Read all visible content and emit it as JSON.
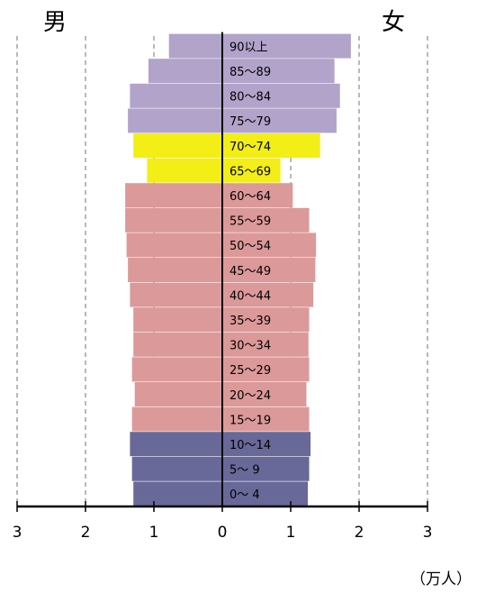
{
  "chart_data": {
    "type": "bar",
    "orientation": "horizontal-pyramid",
    "left_label": "男",
    "right_label": "女",
    "unit": "（万人）",
    "categories": [
      "0～ 4",
      "5～ 9",
      "10～14",
      "15～19",
      "20～24",
      "25～29",
      "30～34",
      "35～39",
      "40～44",
      "45～49",
      "50～54",
      "55～59",
      "60～64",
      "65～69",
      "70～74",
      "75～79",
      "80～84",
      "85～89",
      "90以上"
    ],
    "series": [
      {
        "name": "男",
        "values": [
          1.3,
          1.32,
          1.35,
          1.32,
          1.28,
          1.32,
          1.3,
          1.3,
          1.35,
          1.38,
          1.4,
          1.42,
          1.42,
          1.1,
          1.3,
          1.38,
          1.35,
          1.08,
          0.78
        ]
      },
      {
        "name": "女",
        "values": [
          1.25,
          1.27,
          1.29,
          1.27,
          1.23,
          1.27,
          1.26,
          1.27,
          1.33,
          1.36,
          1.37,
          1.27,
          1.03,
          0.85,
          1.43,
          1.67,
          1.72,
          1.64,
          1.88
        ]
      }
    ],
    "group_colors": [
      {
        "ages": "0～14",
        "color": "#686899"
      },
      {
        "ages": "15～64",
        "color": "#dc9999"
      },
      {
        "ages": "65～74",
        "color": "#f2ee16"
      },
      {
        "ages": "75+",
        "color": "#b1a3ca"
      }
    ],
    "x_ticks": [
      "3",
      "2",
      "1",
      "0",
      "1",
      "2",
      "3"
    ],
    "xlim": [
      -3,
      3
    ],
    "grid": "vertical-dashed"
  }
}
